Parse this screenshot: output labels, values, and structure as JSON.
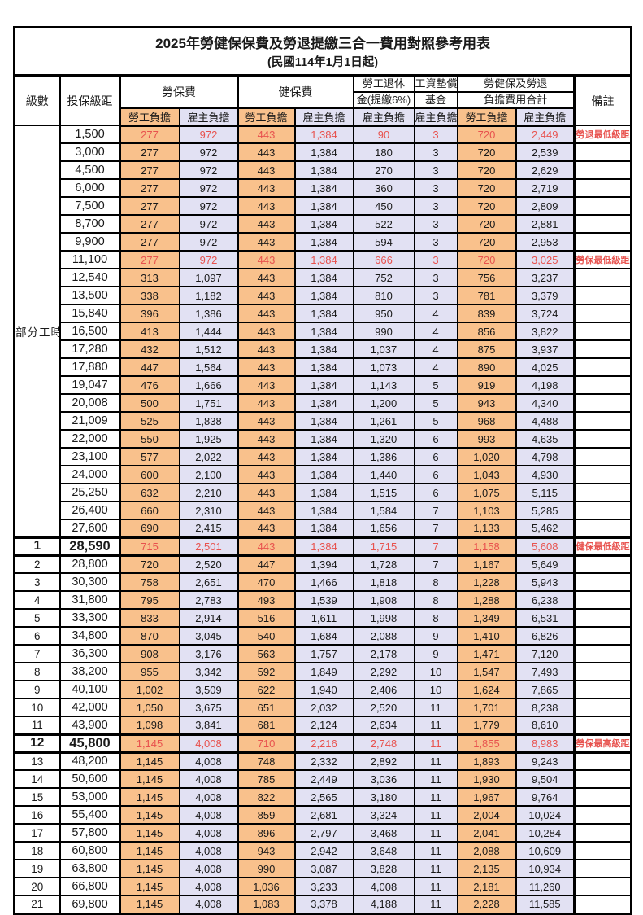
{
  "title": "2025年勞健保保費及勞退提繳三合一費用對照參考用表",
  "subtitle": "(民國114年1月1日起)",
  "columns": {
    "level": "級數",
    "bracket": "投保級距",
    "labor_insurance": "勞保費",
    "health_insurance": "健保費",
    "pension_line1": "勞工退休",
    "pension_line2": "金(提繳6%)",
    "wage_fund_line1": "工資墊償",
    "wage_fund_line2": "基金",
    "total_line1": "勞健保及勞退",
    "total_line2": "負擔費用合計",
    "remark": "備註",
    "employee": "勞工負擔",
    "employer": "雇主負擔"
  },
  "part_time_label": "部分工時",
  "part_time_rowspan": 23,
  "colors": {
    "employee_bg": "#f9c18c",
    "employer_bg": "#e2e1f3",
    "highlight_red": "#e8524e"
  },
  "rows": [
    {
      "level": "",
      "bracket": "1,500",
      "labor_emp": "277",
      "labor_er": "972",
      "health_emp": "443",
      "health_er": "1,384",
      "pension": "90",
      "wage_fund": "3",
      "total_emp": "720",
      "total_er": "2,449",
      "remark": "勞退最低級距",
      "red": true,
      "strong": false
    },
    {
      "level": "",
      "bracket": "3,000",
      "labor_emp": "277",
      "labor_er": "972",
      "health_emp": "443",
      "health_er": "1,384",
      "pension": "180",
      "wage_fund": "3",
      "total_emp": "720",
      "total_er": "2,539",
      "remark": "",
      "red": false,
      "strong": false
    },
    {
      "level": "",
      "bracket": "4,500",
      "labor_emp": "277",
      "labor_er": "972",
      "health_emp": "443",
      "health_er": "1,384",
      "pension": "270",
      "wage_fund": "3",
      "total_emp": "720",
      "total_er": "2,629",
      "remark": "",
      "red": false,
      "strong": false
    },
    {
      "level": "",
      "bracket": "6,000",
      "labor_emp": "277",
      "labor_er": "972",
      "health_emp": "443",
      "health_er": "1,384",
      "pension": "360",
      "wage_fund": "3",
      "total_emp": "720",
      "total_er": "2,719",
      "remark": "",
      "red": false,
      "strong": false
    },
    {
      "level": "",
      "bracket": "7,500",
      "labor_emp": "277",
      "labor_er": "972",
      "health_emp": "443",
      "health_er": "1,384",
      "pension": "450",
      "wage_fund": "3",
      "total_emp": "720",
      "total_er": "2,809",
      "remark": "",
      "red": false,
      "strong": false
    },
    {
      "level": "",
      "bracket": "8,700",
      "labor_emp": "277",
      "labor_er": "972",
      "health_emp": "443",
      "health_er": "1,384",
      "pension": "522",
      "wage_fund": "3",
      "total_emp": "720",
      "total_er": "2,881",
      "remark": "",
      "red": false,
      "strong": false
    },
    {
      "level": "",
      "bracket": "9,900",
      "labor_emp": "277",
      "labor_er": "972",
      "health_emp": "443",
      "health_er": "1,384",
      "pension": "594",
      "wage_fund": "3",
      "total_emp": "720",
      "total_er": "2,953",
      "remark": "",
      "red": false,
      "strong": false
    },
    {
      "level": "",
      "bracket": "11,100",
      "labor_emp": "277",
      "labor_er": "972",
      "health_emp": "443",
      "health_er": "1,384",
      "pension": "666",
      "wage_fund": "3",
      "total_emp": "720",
      "total_er": "3,025",
      "remark": "勞保最低級距",
      "red": true,
      "strong": false
    },
    {
      "level": "",
      "bracket": "12,540",
      "labor_emp": "313",
      "labor_er": "1,097",
      "health_emp": "443",
      "health_er": "1,384",
      "pension": "752",
      "wage_fund": "3",
      "total_emp": "756",
      "total_er": "3,237",
      "remark": "",
      "red": false,
      "strong": false
    },
    {
      "level": "",
      "bracket": "13,500",
      "labor_emp": "338",
      "labor_er": "1,182",
      "health_emp": "443",
      "health_er": "1,384",
      "pension": "810",
      "wage_fund": "3",
      "total_emp": "781",
      "total_er": "3,379",
      "remark": "",
      "red": false,
      "strong": false
    },
    {
      "level": "",
      "bracket": "15,840",
      "labor_emp": "396",
      "labor_er": "1,386",
      "health_emp": "443",
      "health_er": "1,384",
      "pension": "950",
      "wage_fund": "4",
      "total_emp": "839",
      "total_er": "3,724",
      "remark": "",
      "red": false,
      "strong": false
    },
    {
      "level": "",
      "bracket": "16,500",
      "labor_emp": "413",
      "labor_er": "1,444",
      "health_emp": "443",
      "health_er": "1,384",
      "pension": "990",
      "wage_fund": "4",
      "total_emp": "856",
      "total_er": "3,822",
      "remark": "",
      "red": false,
      "strong": false
    },
    {
      "level": "",
      "bracket": "17,280",
      "labor_emp": "432",
      "labor_er": "1,512",
      "health_emp": "443",
      "health_er": "1,384",
      "pension": "1,037",
      "wage_fund": "4",
      "total_emp": "875",
      "total_er": "3,937",
      "remark": "",
      "red": false,
      "strong": false
    },
    {
      "level": "",
      "bracket": "17,880",
      "labor_emp": "447",
      "labor_er": "1,564",
      "health_emp": "443",
      "health_er": "1,384",
      "pension": "1,073",
      "wage_fund": "4",
      "total_emp": "890",
      "total_er": "4,025",
      "remark": "",
      "red": false,
      "strong": false
    },
    {
      "level": "",
      "bracket": "19,047",
      "labor_emp": "476",
      "labor_er": "1,666",
      "health_emp": "443",
      "health_er": "1,384",
      "pension": "1,143",
      "wage_fund": "5",
      "total_emp": "919",
      "total_er": "4,198",
      "remark": "",
      "red": false,
      "strong": false
    },
    {
      "level": "",
      "bracket": "20,008",
      "labor_emp": "500",
      "labor_er": "1,751",
      "health_emp": "443",
      "health_er": "1,384",
      "pension": "1,200",
      "wage_fund": "5",
      "total_emp": "943",
      "total_er": "4,340",
      "remark": "",
      "red": false,
      "strong": false
    },
    {
      "level": "",
      "bracket": "21,009",
      "labor_emp": "525",
      "labor_er": "1,838",
      "health_emp": "443",
      "health_er": "1,384",
      "pension": "1,261",
      "wage_fund": "5",
      "total_emp": "968",
      "total_er": "4,488",
      "remark": "",
      "red": false,
      "strong": false
    },
    {
      "level": "",
      "bracket": "22,000",
      "labor_emp": "550",
      "labor_er": "1,925",
      "health_emp": "443",
      "health_er": "1,384",
      "pension": "1,320",
      "wage_fund": "6",
      "total_emp": "993",
      "total_er": "4,635",
      "remark": "",
      "red": false,
      "strong": false
    },
    {
      "level": "",
      "bracket": "23,100",
      "labor_emp": "577",
      "labor_er": "2,022",
      "health_emp": "443",
      "health_er": "1,384",
      "pension": "1,386",
      "wage_fund": "6",
      "total_emp": "1,020",
      "total_er": "4,798",
      "remark": "",
      "red": false,
      "strong": false
    },
    {
      "level": "",
      "bracket": "24,000",
      "labor_emp": "600",
      "labor_er": "2,100",
      "health_emp": "443",
      "health_er": "1,384",
      "pension": "1,440",
      "wage_fund": "6",
      "total_emp": "1,043",
      "total_er": "4,930",
      "remark": "",
      "red": false,
      "strong": false
    },
    {
      "level": "",
      "bracket": "25,250",
      "labor_emp": "632",
      "labor_er": "2,210",
      "health_emp": "443",
      "health_er": "1,384",
      "pension": "1,515",
      "wage_fund": "6",
      "total_emp": "1,075",
      "total_er": "5,115",
      "remark": "",
      "red": false,
      "strong": false
    },
    {
      "level": "",
      "bracket": "26,400",
      "labor_emp": "660",
      "labor_er": "2,310",
      "health_emp": "443",
      "health_er": "1,384",
      "pension": "1,584",
      "wage_fund": "7",
      "total_emp": "1,103",
      "total_er": "5,285",
      "remark": "",
      "red": false,
      "strong": false
    },
    {
      "level": "",
      "bracket": "27,600",
      "labor_emp": "690",
      "labor_er": "2,415",
      "health_emp": "443",
      "health_er": "1,384",
      "pension": "1,656",
      "wage_fund": "7",
      "total_emp": "1,133",
      "total_er": "5,462",
      "remark": "",
      "red": false,
      "strong": false
    },
    {
      "level": "1",
      "bracket": "28,590",
      "labor_emp": "715",
      "labor_er": "2,501",
      "health_emp": "443",
      "health_er": "1,384",
      "pension": "1,715",
      "wage_fund": "7",
      "total_emp": "1,158",
      "total_er": "5,608",
      "remark": "健保最低級距",
      "red": true,
      "strong": true
    },
    {
      "level": "2",
      "bracket": "28,800",
      "labor_emp": "720",
      "labor_er": "2,520",
      "health_emp": "447",
      "health_er": "1,394",
      "pension": "1,728",
      "wage_fund": "7",
      "total_emp": "1,167",
      "total_er": "5,649",
      "remark": "",
      "red": false,
      "strong": false
    },
    {
      "level": "3",
      "bracket": "30,300",
      "labor_emp": "758",
      "labor_er": "2,651",
      "health_emp": "470",
      "health_er": "1,466",
      "pension": "1,818",
      "wage_fund": "8",
      "total_emp": "1,228",
      "total_er": "5,943",
      "remark": "",
      "red": false,
      "strong": false
    },
    {
      "level": "4",
      "bracket": "31,800",
      "labor_emp": "795",
      "labor_er": "2,783",
      "health_emp": "493",
      "health_er": "1,539",
      "pension": "1,908",
      "wage_fund": "8",
      "total_emp": "1,288",
      "total_er": "6,238",
      "remark": "",
      "red": false,
      "strong": false
    },
    {
      "level": "5",
      "bracket": "33,300",
      "labor_emp": "833",
      "labor_er": "2,914",
      "health_emp": "516",
      "health_er": "1,611",
      "pension": "1,998",
      "wage_fund": "8",
      "total_emp": "1,349",
      "total_er": "6,531",
      "remark": "",
      "red": false,
      "strong": false
    },
    {
      "level": "6",
      "bracket": "34,800",
      "labor_emp": "870",
      "labor_er": "3,045",
      "health_emp": "540",
      "health_er": "1,684",
      "pension": "2,088",
      "wage_fund": "9",
      "total_emp": "1,410",
      "total_er": "6,826",
      "remark": "",
      "red": false,
      "strong": false
    },
    {
      "level": "7",
      "bracket": "36,300",
      "labor_emp": "908",
      "labor_er": "3,176",
      "health_emp": "563",
      "health_er": "1,757",
      "pension": "2,178",
      "wage_fund": "9",
      "total_emp": "1,471",
      "total_er": "7,120",
      "remark": "",
      "red": false,
      "strong": false
    },
    {
      "level": "8",
      "bracket": "38,200",
      "labor_emp": "955",
      "labor_er": "3,342",
      "health_emp": "592",
      "health_er": "1,849",
      "pension": "2,292",
      "wage_fund": "10",
      "total_emp": "1,547",
      "total_er": "7,493",
      "remark": "",
      "red": false,
      "strong": false
    },
    {
      "level": "9",
      "bracket": "40,100",
      "labor_emp": "1,002",
      "labor_er": "3,509",
      "health_emp": "622",
      "health_er": "1,940",
      "pension": "2,406",
      "wage_fund": "10",
      "total_emp": "1,624",
      "total_er": "7,865",
      "remark": "",
      "red": false,
      "strong": false
    },
    {
      "level": "10",
      "bracket": "42,000",
      "labor_emp": "1,050",
      "labor_er": "3,675",
      "health_emp": "651",
      "health_er": "2,032",
      "pension": "2,520",
      "wage_fund": "11",
      "total_emp": "1,701",
      "total_er": "8,238",
      "remark": "",
      "red": false,
      "strong": false
    },
    {
      "level": "11",
      "bracket": "43,900",
      "labor_emp": "1,098",
      "labor_er": "3,841",
      "health_emp": "681",
      "health_er": "2,124",
      "pension": "2,634",
      "wage_fund": "11",
      "total_emp": "1,779",
      "total_er": "8,610",
      "remark": "",
      "red": false,
      "strong": false
    },
    {
      "level": "12",
      "bracket": "45,800",
      "labor_emp": "1,145",
      "labor_er": "4,008",
      "health_emp": "710",
      "health_er": "2,216",
      "pension": "2,748",
      "wage_fund": "11",
      "total_emp": "1,855",
      "total_er": "8,983",
      "remark": "勞保最高級距",
      "red": true,
      "strong": true
    },
    {
      "level": "13",
      "bracket": "48,200",
      "labor_emp": "1,145",
      "labor_er": "4,008",
      "health_emp": "748",
      "health_er": "2,332",
      "pension": "2,892",
      "wage_fund": "11",
      "total_emp": "1,893",
      "total_er": "9,243",
      "remark": "",
      "red": false,
      "strong": false
    },
    {
      "level": "14",
      "bracket": "50,600",
      "labor_emp": "1,145",
      "labor_er": "4,008",
      "health_emp": "785",
      "health_er": "2,449",
      "pension": "3,036",
      "wage_fund": "11",
      "total_emp": "1,930",
      "total_er": "9,504",
      "remark": "",
      "red": false,
      "strong": false
    },
    {
      "level": "15",
      "bracket": "53,000",
      "labor_emp": "1,145",
      "labor_er": "4,008",
      "health_emp": "822",
      "health_er": "2,565",
      "pension": "3,180",
      "wage_fund": "11",
      "total_emp": "1,967",
      "total_er": "9,764",
      "remark": "",
      "red": false,
      "strong": false
    },
    {
      "level": "16",
      "bracket": "55,400",
      "labor_emp": "1,145",
      "labor_er": "4,008",
      "health_emp": "859",
      "health_er": "2,681",
      "pension": "3,324",
      "wage_fund": "11",
      "total_emp": "2,004",
      "total_er": "10,024",
      "remark": "",
      "red": false,
      "strong": false
    },
    {
      "level": "17",
      "bracket": "57,800",
      "labor_emp": "1,145",
      "labor_er": "4,008",
      "health_emp": "896",
      "health_er": "2,797",
      "pension": "3,468",
      "wage_fund": "11",
      "total_emp": "2,041",
      "total_er": "10,284",
      "remark": "",
      "red": false,
      "strong": false
    },
    {
      "level": "18",
      "bracket": "60,800",
      "labor_emp": "1,145",
      "labor_er": "4,008",
      "health_emp": "943",
      "health_er": "2,942",
      "pension": "3,648",
      "wage_fund": "11",
      "total_emp": "2,088",
      "total_er": "10,609",
      "remark": "",
      "red": false,
      "strong": false
    },
    {
      "level": "19",
      "bracket": "63,800",
      "labor_emp": "1,145",
      "labor_er": "4,008",
      "health_emp": "990",
      "health_er": "3,087",
      "pension": "3,828",
      "wage_fund": "11",
      "total_emp": "2,135",
      "total_er": "10,934",
      "remark": "",
      "red": false,
      "strong": false
    },
    {
      "level": "20",
      "bracket": "66,800",
      "labor_emp": "1,145",
      "labor_er": "4,008",
      "health_emp": "1,036",
      "health_er": "3,233",
      "pension": "4,008",
      "wage_fund": "11",
      "total_emp": "2,181",
      "total_er": "11,260",
      "remark": "",
      "red": false,
      "strong": false
    },
    {
      "level": "21",
      "bracket": "69,800",
      "labor_emp": "1,145",
      "labor_er": "4,008",
      "health_emp": "1,083",
      "health_er": "3,378",
      "pension": "4,188",
      "wage_fund": "11",
      "total_emp": "2,228",
      "total_er": "11,585",
      "remark": "",
      "red": false,
      "strong": false
    }
  ]
}
